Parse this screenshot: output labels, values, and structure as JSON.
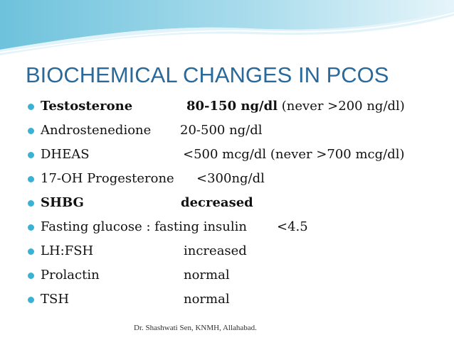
{
  "slide": {
    "title": "BIOCHEMICAL CHANGES IN PCOS",
    "items": [
      {
        "name": "Testosterone",
        "value": "80-150 ng/dl",
        "note": " (never >200 ng/dl)"
      },
      {
        "name": "Androstenedione",
        "value": "20-500 ng/dl",
        "note": ""
      },
      {
        "name": "DHEAS",
        "value": "<500 mcg/dl (never >700 mcg/dl)",
        "note": ""
      },
      {
        "name": "17-OH Progesterone",
        "value": "<300ng/dl",
        "note": ""
      },
      {
        "name": "SHBG",
        "value": "decreased",
        "note": ""
      },
      {
        "name": "Fasting glucose : fasting insulin",
        "value": "<4.5",
        "note": ""
      },
      {
        "name": "LH:FSH",
        "value": "increased",
        "note": ""
      },
      {
        "name": "Prolactin",
        "value": "normal",
        "note": ""
      },
      {
        "name": "TSH",
        "value": "normal",
        "note": ""
      }
    ],
    "footer": "Dr. Shashwati Sen, KNMH, Allahabad."
  },
  "colors": {
    "title": "#2a6a9b",
    "bullet": "#3ab2d4",
    "wave_dark": "#7cc8df",
    "wave_light": "#cbeaf3"
  }
}
